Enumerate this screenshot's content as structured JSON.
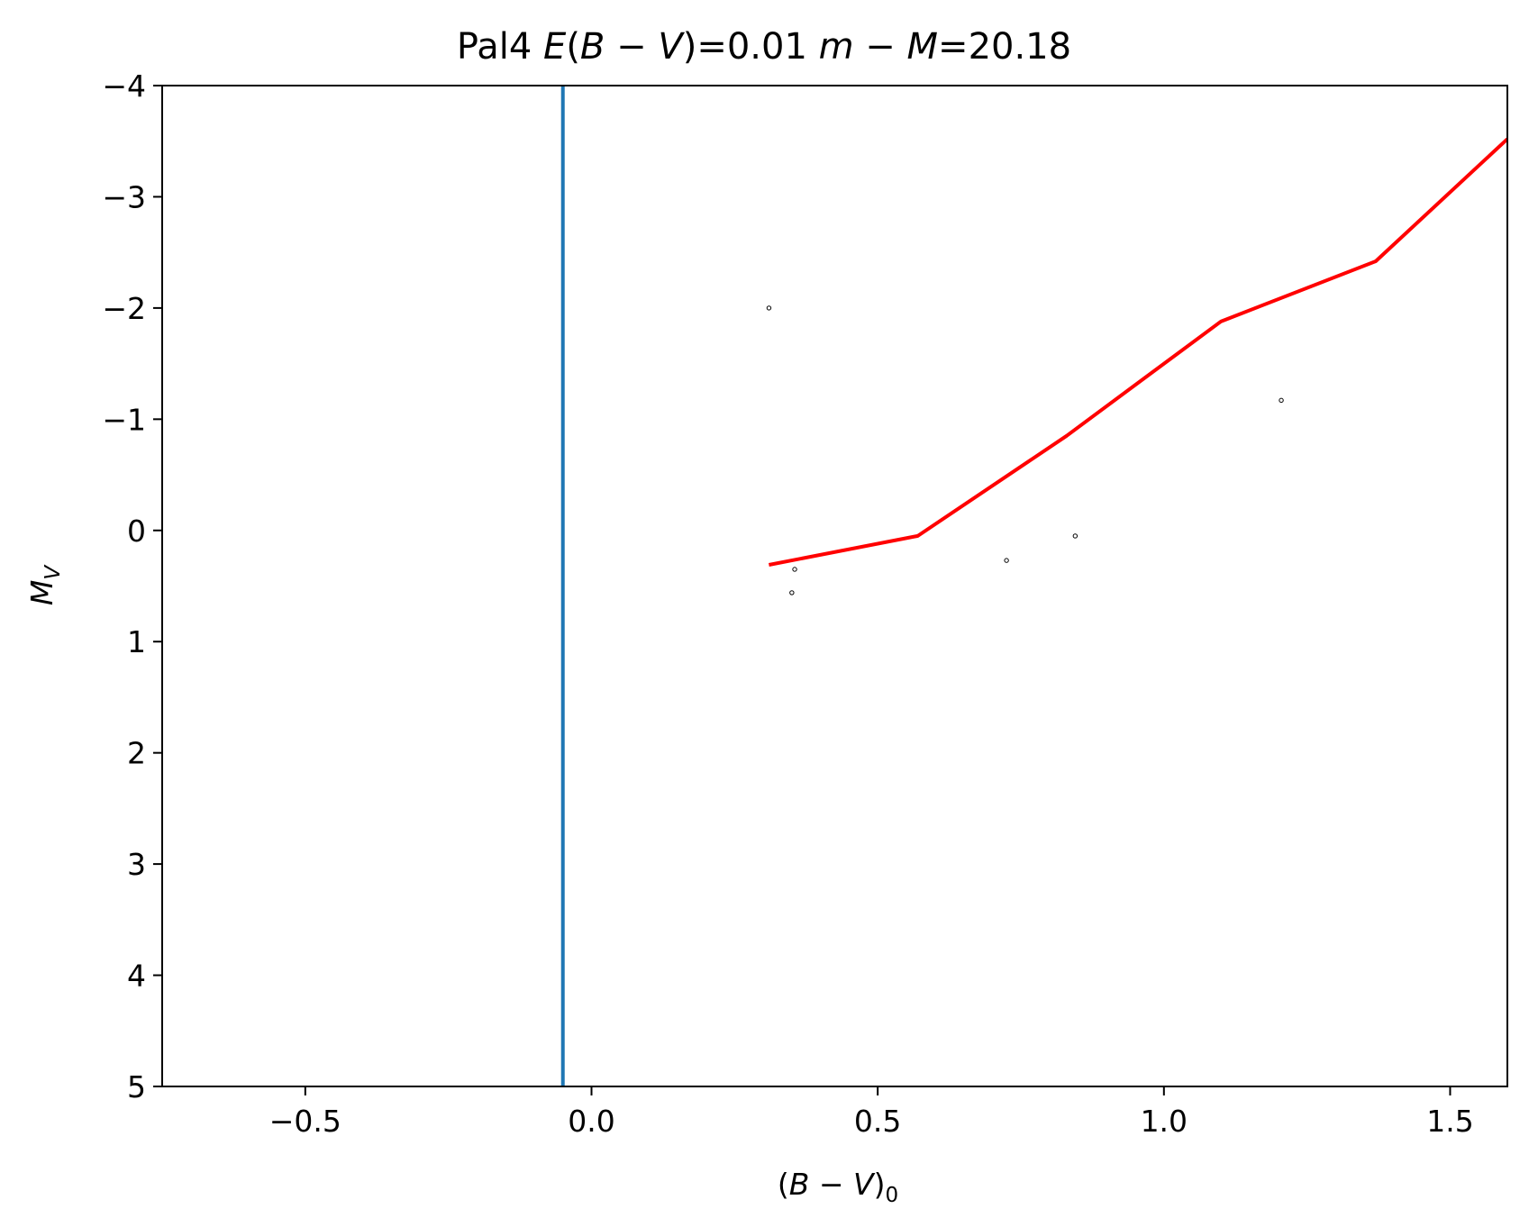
{
  "chart_data": {
    "type": "scatter",
    "title": {
      "prefix": "Pal4 ",
      "ebv_symbol": "E",
      "ebv_open": "(",
      "ebv_b": "B",
      "ebv_minus": " − ",
      "ebv_v": "V",
      "ebv_close": ")",
      "ebv_value": "=0.01 ",
      "dm_m": "m",
      "dm_minus": " − ",
      "dm_M": "M",
      "dm_value": "=20.18"
    },
    "xlabel": {
      "open": "(",
      "b": "B",
      "minus": " − ",
      "v": "V",
      "close": ")",
      "sub": "0"
    },
    "ylabel": {
      "symbol": "M",
      "sub": "V"
    },
    "xlim": [
      -0.75,
      1.6
    ],
    "ylim": [
      5,
      -4
    ],
    "y_inverted": true,
    "grid": false,
    "x_ticks": [
      -0.5,
      0.0,
      0.5,
      1.0,
      1.5
    ],
    "x_tick_labels": [
      "−0.5",
      "0.0",
      "0.5",
      "1.0",
      "1.5"
    ],
    "y_ticks": [
      -4,
      -3,
      -2,
      -1,
      0,
      1,
      2,
      3,
      4,
      5
    ],
    "y_tick_labels": [
      "−4",
      "−3",
      "−2",
      "−1",
      "0",
      "1",
      "2",
      "3",
      "4",
      "5"
    ],
    "vertical_line": {
      "x": -0.05,
      "color": "#1f77b4"
    },
    "line_series": {
      "color": "#ff0000",
      "x": [
        0.31,
        0.57,
        0.83,
        1.1,
        1.37,
        1.6
      ],
      "y": [
        0.31,
        0.05,
        -0.85,
        -1.88,
        -2.42,
        -3.52
      ]
    },
    "scatter_series": {
      "color": "#000000",
      "x": [
        0.31,
        0.355,
        0.35,
        0.725,
        0.845,
        1.205
      ],
      "y": [
        -2.0,
        0.35,
        0.56,
        0.27,
        0.05,
        -1.17
      ]
    }
  }
}
